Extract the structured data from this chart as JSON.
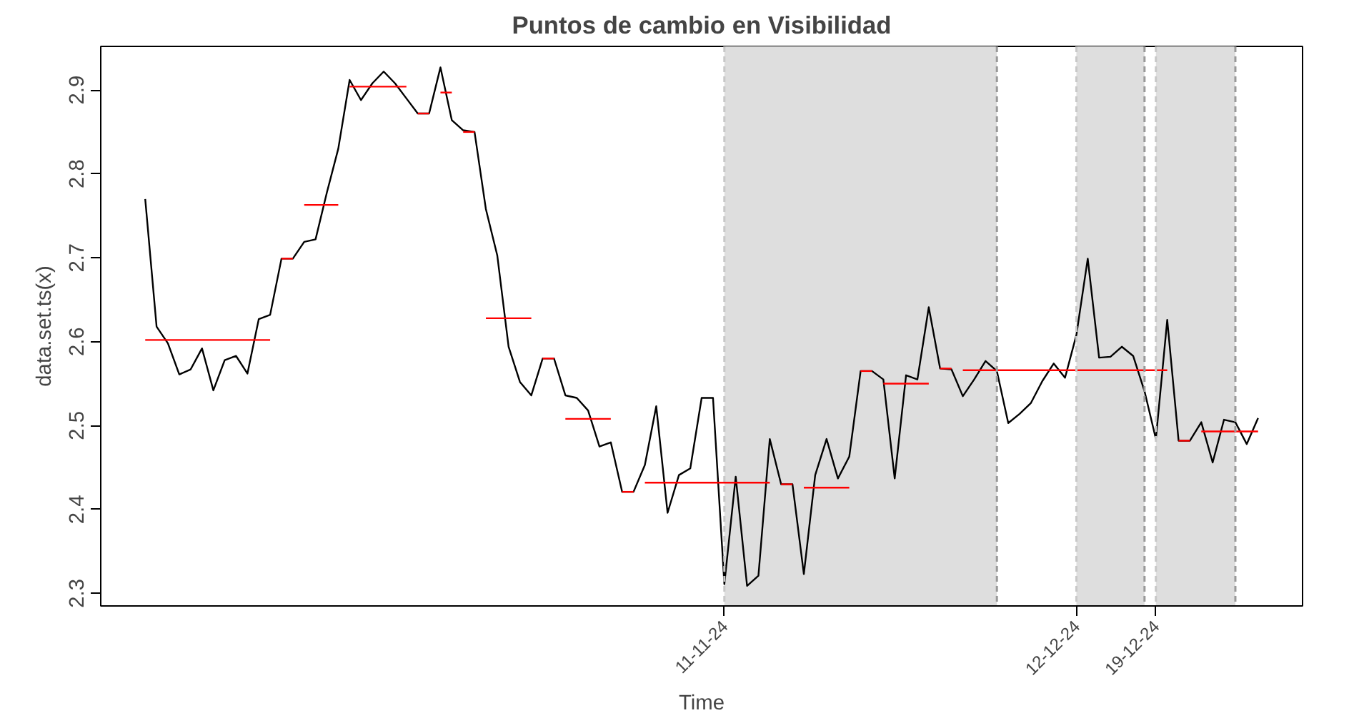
{
  "chart_data": {
    "type": "line",
    "title": "Puntos de cambio en Visibilidad",
    "xlabel": "Time",
    "ylabel": "data.set.ts(x)",
    "x": [
      "2024-09-21",
      "2024-09-22",
      "2024-09-23",
      "2024-09-24",
      "2024-09-25",
      "2024-09-26",
      "2024-09-27",
      "2024-09-28",
      "2024-09-29",
      "2024-09-30",
      "2024-10-01",
      "2024-10-02",
      "2024-10-03",
      "2024-10-04",
      "2024-10-05",
      "2024-10-06",
      "2024-10-07",
      "2024-10-08",
      "2024-10-09",
      "2024-10-10",
      "2024-10-11",
      "2024-10-12",
      "2024-10-13",
      "2024-10-14",
      "2024-10-15",
      "2024-10-16",
      "2024-10-17",
      "2024-10-18",
      "2024-10-19",
      "2024-10-20",
      "2024-10-21",
      "2024-10-22",
      "2024-10-23",
      "2024-10-24",
      "2024-10-25",
      "2024-10-26",
      "2024-10-27",
      "2024-10-28",
      "2024-10-29",
      "2024-10-30",
      "2024-10-31",
      "2024-11-01",
      "2024-11-02",
      "2024-11-03",
      "2024-11-04",
      "2024-11-05",
      "2024-11-06",
      "2024-11-07",
      "2024-11-08",
      "2024-11-09",
      "2024-11-10",
      "2024-11-11",
      "2024-11-12",
      "2024-11-13",
      "2024-11-14",
      "2024-11-15",
      "2024-11-16",
      "2024-11-17",
      "2024-11-18",
      "2024-11-19",
      "2024-11-20",
      "2024-11-21",
      "2024-11-22",
      "2024-11-23",
      "2024-11-24",
      "2024-11-25",
      "2024-11-26",
      "2024-11-27",
      "2024-11-28",
      "2024-11-29",
      "2024-11-30",
      "2024-12-01",
      "2024-12-02",
      "2024-12-03",
      "2024-12-04",
      "2024-12-05",
      "2024-12-06",
      "2024-12-07",
      "2024-12-08",
      "2024-12-09",
      "2024-12-10",
      "2024-12-11",
      "2024-12-12",
      "2024-12-13",
      "2024-12-14",
      "2024-12-15",
      "2024-12-16",
      "2024-12-17",
      "2024-12-18",
      "2024-12-19",
      "2024-12-20",
      "2024-12-21",
      "2024-12-22",
      "2024-12-23",
      "2024-12-24",
      "2024-12-25",
      "2024-12-26",
      "2024-12-27",
      "2024-12-28"
    ],
    "series": [
      {
        "color": "#000000",
        "values": [
          2.77,
          2.618,
          2.598,
          2.561,
          2.567,
          2.592,
          2.542,
          2.578,
          2.583,
          2.562,
          2.627,
          2.632,
          2.699,
          2.699,
          2.719,
          2.722,
          2.778,
          2.83,
          2.912,
          2.888,
          2.908,
          2.922,
          2.908,
          2.89,
          2.872,
          2.872,
          2.927,
          2.864,
          2.852,
          2.85,
          2.758,
          2.703,
          2.594,
          2.552,
          2.536,
          2.58,
          2.58,
          2.536,
          2.533,
          2.518,
          2.475,
          2.48,
          2.421,
          2.421,
          2.453,
          2.523,
          2.396,
          2.441,
          2.449,
          2.533,
          2.533,
          2.311,
          2.439,
          2.309,
          2.321,
          2.484,
          2.43,
          2.43,
          2.323,
          2.441,
          2.484,
          2.437,
          2.463,
          2.565,
          2.565,
          2.555,
          2.437,
          2.56,
          2.555,
          2.641,
          2.568,
          2.567,
          2.535,
          2.555,
          2.577,
          2.565,
          2.503,
          2.514,
          2.527,
          2.553,
          2.574,
          2.557,
          2.608,
          2.699,
          2.581,
          2.582,
          2.594,
          2.583,
          2.541,
          2.484,
          2.626,
          2.482,
          2.482,
          2.504,
          2.456,
          2.507,
          2.504,
          2.478,
          2.509
        ]
      },
      {
        "color": "#ff0000",
        "x": [
          "2024-09-21",
          "2024-10-02"
        ],
        "values": [
          2.602,
          2.602
        ]
      },
      {
        "color": "#ff0000",
        "x": [
          "2024-10-03",
          "2024-10-04"
        ],
        "values": [
          2.699,
          2.699
        ]
      },
      {
        "color": "#ff0000",
        "x": [
          "2024-10-05",
          "2024-10-08"
        ],
        "values": [
          2.763,
          2.763
        ]
      },
      {
        "color": "#ff0000",
        "x": [
          "2024-10-09",
          "2024-10-14"
        ],
        "values": [
          2.904,
          2.904
        ]
      },
      {
        "color": "#ff0000",
        "x": [
          "2024-10-15",
          "2024-10-16"
        ],
        "values": [
          2.872,
          2.872
        ]
      },
      {
        "color": "#ff0000",
        "x": [
          "2024-10-17",
          "2024-10-18"
        ],
        "values": [
          2.897,
          2.897
        ]
      },
      {
        "color": "#ff0000",
        "x": [
          "2024-10-19",
          "2024-10-20"
        ],
        "values": [
          2.85,
          2.85
        ]
      },
      {
        "color": "#ff0000",
        "x": [
          "2024-10-21",
          "2024-10-25"
        ],
        "values": [
          2.628,
          2.628
        ]
      },
      {
        "color": "#ff0000",
        "x": [
          "2024-10-26",
          "2024-10-27"
        ],
        "values": [
          2.58,
          2.58
        ]
      },
      {
        "color": "#ff0000",
        "x": [
          "2024-10-28",
          "2024-11-01"
        ],
        "values": [
          2.508,
          2.508
        ]
      },
      {
        "color": "#ff0000",
        "x": [
          "2024-11-02",
          "2024-11-03"
        ],
        "values": [
          2.421,
          2.421
        ]
      },
      {
        "color": "#ff0000",
        "x": [
          "2024-11-04",
          "2024-11-15"
        ],
        "values": [
          2.432,
          2.432
        ]
      },
      {
        "color": "#ff0000",
        "x": [
          "2024-11-16",
          "2024-11-17"
        ],
        "values": [
          2.43,
          2.43
        ]
      },
      {
        "color": "#ff0000",
        "x": [
          "2024-11-18",
          "2024-11-22"
        ],
        "values": [
          2.426,
          2.426
        ]
      },
      {
        "color": "#ff0000",
        "x": [
          "2024-11-23",
          "2024-11-24"
        ],
        "values": [
          2.565,
          2.565
        ]
      },
      {
        "color": "#ff0000",
        "x": [
          "2024-11-25",
          "2024-11-29"
        ],
        "values": [
          2.55,
          2.55
        ]
      },
      {
        "color": "#ff0000",
        "x": [
          "2024-11-30",
          "2024-12-01"
        ],
        "values": [
          2.568,
          2.568
        ]
      },
      {
        "color": "#ff0000",
        "x": [
          "2024-12-02",
          "2024-12-20"
        ],
        "values": [
          2.566,
          2.566
        ]
      },
      {
        "color": "#ff0000",
        "x": [
          "2024-12-21",
          "2024-12-22"
        ],
        "values": [
          2.482,
          2.482
        ]
      },
      {
        "color": "#ff0000",
        "x": [
          "2024-12-23",
          "2024-12-28"
        ],
        "values": [
          2.493,
          2.493
        ]
      }
    ],
    "bands": [
      {
        "axis": "x",
        "from": "2024-11-11",
        "to": "2024-12-05",
        "color": "#dedede"
      },
      {
        "axis": "x",
        "from": "2024-12-12",
        "to": "2024-12-18",
        "color": "#dedede"
      },
      {
        "axis": "x",
        "from": "2024-12-19",
        "to": "2024-12-26",
        "color": "#dedede"
      }
    ],
    "ref_lines": [
      {
        "axis": "x",
        "value": "2024-11-11",
        "color": "#c8c8c8",
        "line_style": "dashed"
      },
      {
        "axis": "x",
        "value": "2024-12-05",
        "color": "#999999",
        "line_style": "dashed"
      },
      {
        "axis": "x",
        "value": "2024-12-12",
        "color": "#c8c8c8",
        "line_style": "dashed"
      },
      {
        "axis": "x",
        "value": "2024-12-18",
        "color": "#999999",
        "line_style": "dashed"
      },
      {
        "axis": "x",
        "value": "2024-12-19",
        "color": "#c8c8c8",
        "line_style": "dashed"
      },
      {
        "axis": "x",
        "value": "2024-12-26",
        "color": "#999999",
        "line_style": "dashed"
      }
    ],
    "xlim": [
      "2024-09-17T02:00",
      "2024-12-31T22:00"
    ],
    "xticks": [
      {
        "value": "2024-11-11",
        "label": "11-11-24"
      },
      {
        "value": "2024-12-12",
        "label": "12-12-24"
      },
      {
        "value": "2024-12-19",
        "label": "19-12-24"
      }
    ],
    "ylim": [
      2.285,
      2.952
    ],
    "yticks": [
      2.3,
      2.4,
      2.5,
      2.6,
      2.7,
      2.8,
      2.9
    ],
    "grid": false
  }
}
